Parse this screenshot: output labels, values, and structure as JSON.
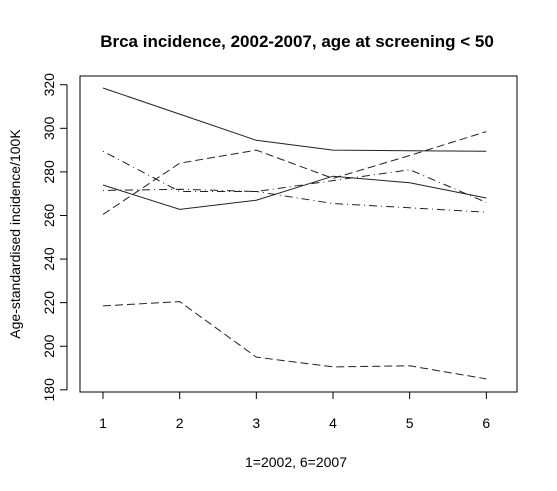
{
  "chart_data": {
    "type": "line",
    "title": "Brca incidence, 2002-2007, age at screening < 50",
    "xlabel": "1=2002, 6=2007",
    "ylabel": "Age-standardised incidence/100K",
    "x": [
      1,
      2,
      3,
      4,
      5,
      6
    ],
    "xlim": [
      0.7,
      6.4
    ],
    "ylim": [
      179,
      324
    ],
    "yticks": [
      180,
      200,
      220,
      240,
      260,
      280,
      300,
      320
    ],
    "grid": false,
    "series": [
      {
        "values": [
          318.5,
          306.5,
          294.5,
          290,
          289.7,
          289.5
        ],
        "line_style": "solid"
      },
      {
        "values": [
          274,
          262.8,
          267,
          278,
          275,
          268
        ],
        "line_style": "solid"
      },
      {
        "values": [
          260.5,
          284,
          290,
          277,
          287.5,
          298.5
        ],
        "line_style": "dashed"
      },
      {
        "values": [
          218.5,
          220.5,
          195,
          190.5,
          191,
          185
        ],
        "line_style": "dashed"
      },
      {
        "values": [
          289.5,
          271,
          271,
          265.5,
          263.5,
          261.5
        ],
        "line_style": "dotdash"
      },
      {
        "values": [
          271.5,
          272,
          271,
          276,
          281,
          266
        ],
        "line_style": "dotdash"
      }
    ]
  }
}
